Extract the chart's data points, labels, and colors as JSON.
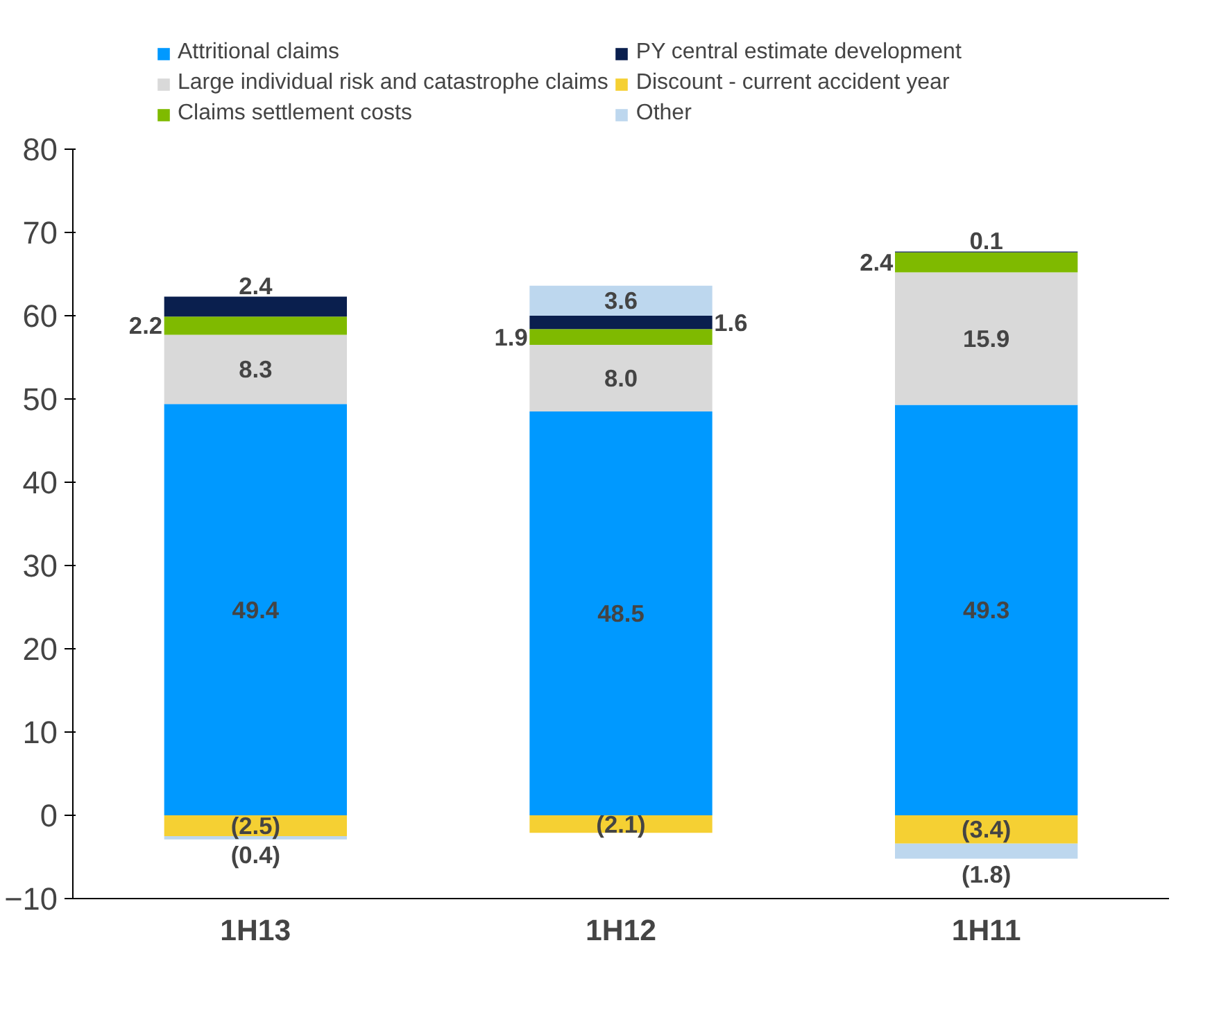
{
  "chart_data": {
    "type": "bar",
    "stacked": true,
    "categories": [
      "1H13",
      "1H12",
      "1H11"
    ],
    "series": [
      {
        "name": "Attritional claims",
        "color": "#0099ff",
        "values": [
          49.4,
          48.5,
          49.3
        ],
        "value_labels": [
          "49.4",
          "48.5",
          "49.3"
        ]
      },
      {
        "name": "Large individual risk and catastrophe claims",
        "color": "#d9d9d9",
        "values": [
          8.3,
          8.0,
          15.9
        ],
        "value_labels": [
          "8.3",
          "8.0",
          "15.9"
        ]
      },
      {
        "name": "Claims settlement costs",
        "color": "#7fba00",
        "values": [
          2.2,
          1.9,
          2.4
        ],
        "value_labels": [
          "2.2",
          "1.9",
          "2.4"
        ]
      },
      {
        "name": "PY central estimate development",
        "color": "#0a1f4e",
        "values": [
          2.4,
          1.6,
          0.1
        ],
        "value_labels": [
          "2.4",
          "1.6",
          "0.1"
        ]
      },
      {
        "name": "Discount - current accident year",
        "color": "#f5d033",
        "values": [
          -2.5,
          -2.1,
          -3.4
        ],
        "value_labels": [
          "(2.5)",
          "(2.1)",
          "(3.4)"
        ]
      },
      {
        "name": "Other",
        "color": "#bdd7ee",
        "values": [
          -0.4,
          3.6,
          -1.8
        ],
        "value_labels": [
          "(0.4)",
          "3.6",
          "(1.8)"
        ]
      }
    ],
    "ylim": [
      -10,
      80
    ],
    "yticks": [
      -10,
      0,
      10,
      20,
      30,
      40,
      50,
      60,
      70,
      80
    ],
    "legend": "top"
  }
}
